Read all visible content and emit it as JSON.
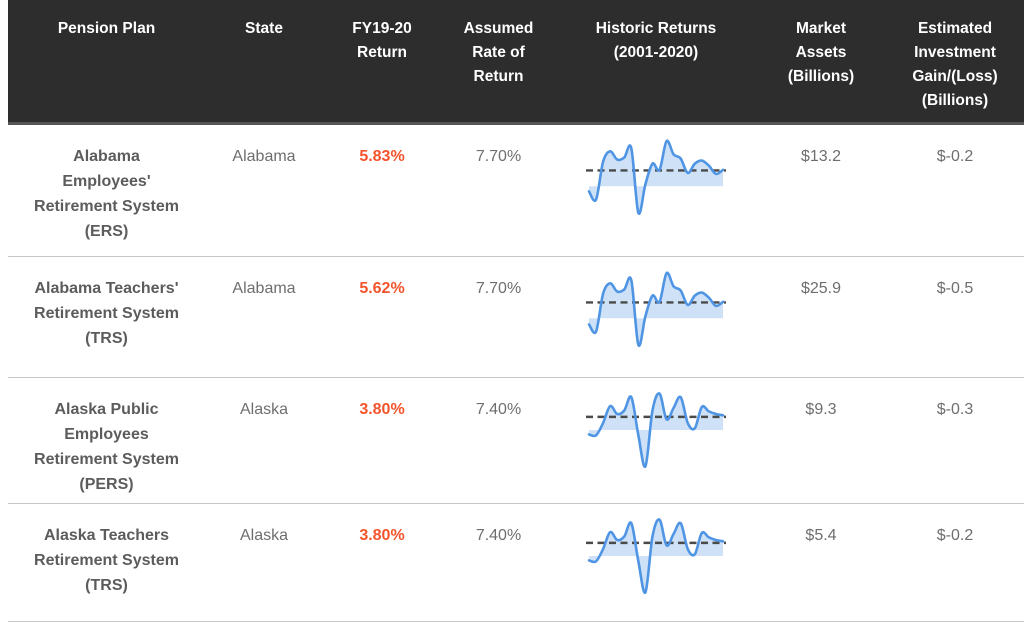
{
  "table": {
    "columns": [
      {
        "label": "Pension Plan"
      },
      {
        "label": "State"
      },
      {
        "label": "FY19-20\nReturn"
      },
      {
        "label": "Assumed\nRate of\nReturn"
      },
      {
        "label": "Historic Returns\n(2001-2020)"
      },
      {
        "label": "Market\nAssets\n(Billions)"
      },
      {
        "label": "Estimated\nInvestment\nGain/(Loss)\n(Billions)"
      }
    ],
    "rows": [
      {
        "plan": "Alabama\nEmployees'\nRetirement System\n(ERS)",
        "state": "Alabama",
        "fy_return": "5.83%",
        "assumed_rate": "7.70%",
        "market_assets": "$13.2",
        "est_gain_loss": "$-0.2"
      },
      {
        "plan": "Alabama Teachers'\nRetirement System\n(TRS)",
        "state": "Alabama",
        "fy_return": "5.62%",
        "assumed_rate": "7.70%",
        "market_assets": "$25.9",
        "est_gain_loss": "$-0.5"
      },
      {
        "plan": "Alaska Public\nEmployees\nRetirement System\n(PERS)",
        "state": "Alaska",
        "fy_return": "3.80%",
        "assumed_rate": "7.40%",
        "market_assets": "$9.3",
        "est_gain_loss": "$-0.3"
      },
      {
        "plan": "Alaska Teachers\nRetirement System\n(TRS)",
        "state": "Alaska",
        "fy_return": "3.80%",
        "assumed_rate": "7.40%",
        "market_assets": "$5.4",
        "est_gain_loss": "$-0.2"
      }
    ]
  },
  "chart_data": [
    {
      "type": "area",
      "title": "Alabama ERS historic returns 2001-2020 (%)",
      "x": [
        2001,
        2002,
        2003,
        2004,
        2005,
        2006,
        2007,
        2008,
        2009,
        2010,
        2011,
        2012,
        2013,
        2014,
        2015,
        2016,
        2017,
        2018,
        2019,
        2020
      ],
      "values": [
        -2.5,
        -6.5,
        12,
        17,
        13,
        14,
        18.5,
        -13,
        1,
        11,
        8,
        22,
        15.5,
        13.5,
        6.5,
        11,
        12.5,
        10,
        6,
        8
      ],
      "reference_line": 7.7,
      "baseline": 0,
      "grid": false,
      "legend": false
    },
    {
      "type": "area",
      "title": "Alabama TRS historic returns 2001-2020 (%)",
      "x": [
        2001,
        2002,
        2003,
        2004,
        2005,
        2006,
        2007,
        2008,
        2009,
        2010,
        2011,
        2012,
        2013,
        2014,
        2015,
        2016,
        2017,
        2018,
        2019,
        2020
      ],
      "values": [
        -3,
        -6.5,
        12,
        17,
        13,
        14,
        18.5,
        -13,
        1,
        11,
        8,
        22,
        15.5,
        13.5,
        6.5,
        11,
        12.5,
        10,
        6,
        8
      ],
      "reference_line": 7.7,
      "baseline": 0,
      "grid": false,
      "legend": false
    },
    {
      "type": "area",
      "title": "Alaska PERS historic returns 2001-2020 (%)",
      "x": [
        2001,
        2002,
        2003,
        2004,
        2005,
        2006,
        2007,
        2008,
        2009,
        2010,
        2011,
        2012,
        2013,
        2014,
        2015,
        2016,
        2017,
        2018,
        2019,
        2020
      ],
      "values": [
        -2.5,
        -3,
        4,
        13.5,
        9,
        11,
        18.5,
        -3,
        -20.5,
        11,
        20.5,
        6,
        12.5,
        18.5,
        4,
        1,
        13,
        10.5,
        9,
        8.3
      ],
      "reference_line": 7.4,
      "baseline": 0,
      "grid": false,
      "legend": false
    },
    {
      "type": "area",
      "title": "Alaska TRS historic returns 2001-2020 (%)",
      "x": [
        2001,
        2002,
        2003,
        2004,
        2005,
        2006,
        2007,
        2008,
        2009,
        2010,
        2011,
        2012,
        2013,
        2014,
        2015,
        2016,
        2017,
        2018,
        2019,
        2020
      ],
      "values": [
        -2.5,
        -3,
        4,
        13.5,
        9,
        11,
        18.5,
        -3,
        -20.5,
        11,
        20.5,
        6,
        12.5,
        18.5,
        4,
        1,
        13,
        10.5,
        9,
        8.3
      ],
      "reference_line": 7.4,
      "baseline": 0,
      "grid": false,
      "legend": false
    }
  ],
  "colors": {
    "header_bg": "#2d2d2d",
    "header_text": "#ffffff",
    "accent_orange": "#f4542c",
    "spark_line": "#4f95e4",
    "spark_fill": "rgba(79,149,228,0.28)",
    "spark_reference": "#4a4a4a",
    "row_border": "#c6c6c6"
  }
}
